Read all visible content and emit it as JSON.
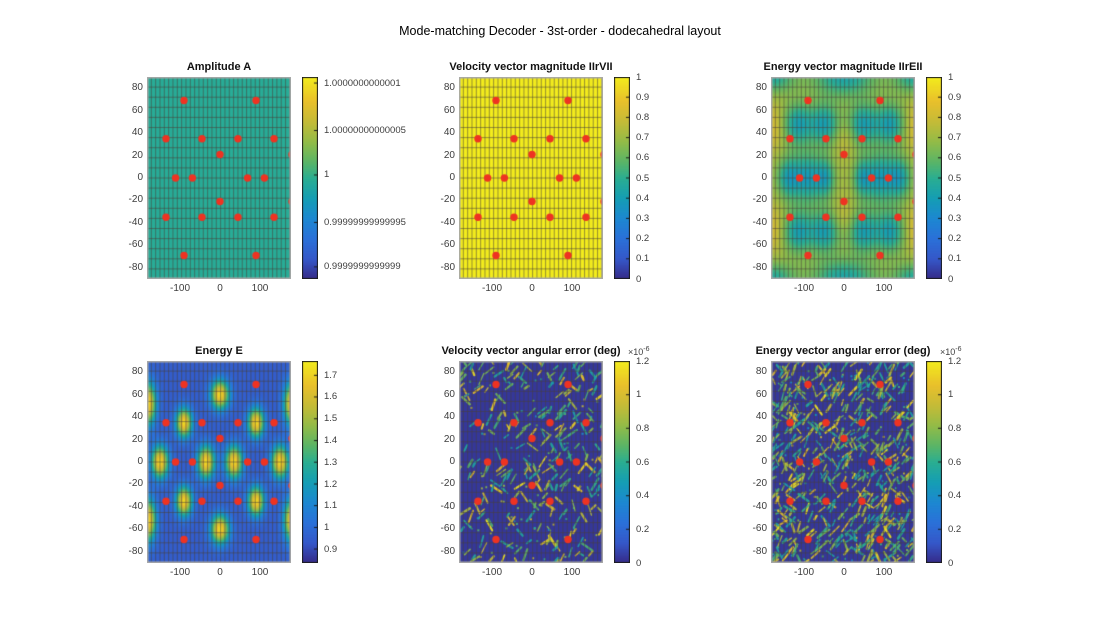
{
  "figure": {
    "title": "Mode-matching Decoder - 3st-order - dodecahedral layout",
    "background": "#ffffff"
  },
  "colors": {
    "speaker_dot": "#ee3322",
    "grid_line": "rgba(72,66,58,0.55)",
    "plot_border": "#a8a8a8",
    "colorbar_border": "#1a1a1a",
    "tick_label": "#3d3d3d",
    "colormap_stops": [
      [
        0.0,
        "#352a87"
      ],
      [
        0.1,
        "#3558c9"
      ],
      [
        0.2,
        "#2b71d9"
      ],
      [
        0.3,
        "#1d88d2"
      ],
      [
        0.4,
        "#159eb5"
      ],
      [
        0.5,
        "#2bae92"
      ],
      [
        0.58,
        "#5ab568"
      ],
      [
        0.68,
        "#93bc48"
      ],
      [
        0.78,
        "#c5bb38"
      ],
      [
        0.88,
        "#e9c02c"
      ],
      [
        1.0,
        "#f3ec1d"
      ]
    ]
  },
  "axes": {
    "x_range": [
      -182.5,
      177.5
    ],
    "y_range": [
      -90,
      90
    ],
    "x_ticks": [
      {
        "value": -100,
        "label": "-100"
      },
      {
        "value": 0,
        "label": "0"
      },
      {
        "value": 100,
        "label": "100"
      }
    ],
    "y_ticks": [
      {
        "value": 80,
        "label": "80"
      },
      {
        "value": 60,
        "label": "60"
      },
      {
        "value": 40,
        "label": "40"
      },
      {
        "value": 20,
        "label": "20"
      },
      {
        "value": 0,
        "label": "0"
      },
      {
        "value": -20,
        "label": "-20"
      },
      {
        "value": -40,
        "label": "-40"
      },
      {
        "value": -60,
        "label": "-60"
      },
      {
        "value": -80,
        "label": "-80"
      }
    ]
  },
  "speaker_positions": [
    [
      -90,
      69
    ],
    [
      90,
      69
    ],
    [
      -135,
      35
    ],
    [
      -45,
      35
    ],
    [
      45,
      35
    ],
    [
      135,
      35
    ],
    [
      0,
      21
    ],
    [
      180,
      21
    ],
    [
      -111,
      0
    ],
    [
      -69,
      0
    ],
    [
      69,
      0
    ],
    [
      111,
      0
    ],
    [
      0,
      -21
    ],
    [
      180,
      -21
    ],
    [
      -135,
      -35
    ],
    [
      -45,
      -35
    ],
    [
      45,
      -35
    ],
    [
      135,
      -35
    ],
    [
      -90,
      -69
    ],
    [
      90,
      -69
    ]
  ],
  "chart_data": [
    {
      "id": "amplitude-a",
      "type": "heatmap",
      "title": "Amplitude A",
      "show_speakers": true,
      "field": {
        "kind": "uniform",
        "frac": 0.485,
        "value_shown": "1"
      },
      "colorbar": {
        "ticks": [
          {
            "label": "1.0000000000001",
            "t": 0.03
          },
          {
            "label": "1.00000000000005",
            "t": 0.265
          },
          {
            "label": "1",
            "t": 0.485
          },
          {
            "label": "0.99999999999995",
            "t": 0.72
          },
          {
            "label": "0.9999999999999",
            "t": 0.94
          }
        ]
      }
    },
    {
      "id": "velocity-vector-magnitude",
      "type": "heatmap",
      "title": "Velocity vector magnitude IIrVII",
      "show_speakers": true,
      "field": {
        "kind": "uniform",
        "frac": 1.0,
        "value_shown": "1"
      },
      "colorbar": {
        "ticks": [
          {
            "label": "1",
            "t": 0
          },
          {
            "label": "0.9",
            "t": 0.1
          },
          {
            "label": "0.8",
            "t": 0.2
          },
          {
            "label": "0.7",
            "t": 0.3
          },
          {
            "label": "0.6",
            "t": 0.4
          },
          {
            "label": "0.5",
            "t": 0.5
          },
          {
            "label": "0.4",
            "t": 0.6
          },
          {
            "label": "0.3",
            "t": 0.7
          },
          {
            "label": "0.2",
            "t": 0.8
          },
          {
            "label": "0.1",
            "t": 0.9
          },
          {
            "label": "0",
            "t": 1
          }
        ]
      }
    },
    {
      "id": "energy-vector-magnitude",
      "type": "heatmap",
      "title": "Energy vector magnitude IIrEII",
      "show_speakers": true,
      "field": {
        "kind": "blobs",
        "base_frac": 0.72,
        "blobs": [
          [
            -115,
            48,
            -0.3,
            26,
            13
          ],
          [
            -48,
            48,
            -0.3,
            26,
            13
          ],
          [
            48,
            48,
            -0.3,
            26,
            13
          ],
          [
            115,
            48,
            -0.3,
            26,
            13
          ],
          [
            -90,
            0,
            -0.32,
            30,
            15
          ],
          [
            90,
            0,
            -0.32,
            30,
            15
          ],
          [
            -140,
            0,
            -0.25,
            20,
            13
          ],
          [
            140,
            0,
            -0.25,
            20,
            13
          ],
          [
            -45,
            0,
            -0.22,
            16,
            12
          ],
          [
            45,
            0,
            -0.22,
            16,
            12
          ],
          [
            -115,
            -48,
            -0.3,
            26,
            13
          ],
          [
            -48,
            -48,
            -0.3,
            26,
            13
          ],
          [
            48,
            -48,
            -0.3,
            26,
            13
          ],
          [
            115,
            -48,
            -0.3,
            26,
            13
          ],
          [
            0,
            90,
            -0.28,
            55,
            12
          ],
          [
            0,
            -90,
            -0.28,
            55,
            12
          ],
          [
            -180,
            90,
            -0.25,
            40,
            10
          ],
          [
            180,
            90,
            -0.25,
            40,
            10
          ],
          [
            -180,
            -90,
            -0.25,
            40,
            10
          ],
          [
            180,
            -90,
            -0.25,
            40,
            10
          ],
          [
            -180,
            45,
            0.12,
            20,
            15
          ],
          [
            180,
            45,
            0.12,
            20,
            15
          ],
          [
            -180,
            -45,
            0.12,
            20,
            15
          ],
          [
            180,
            -45,
            0.12,
            20,
            15
          ],
          [
            0,
            35,
            0.08,
            18,
            12
          ],
          [
            0,
            -35,
            0.08,
            18,
            12
          ]
        ]
      },
      "colorbar": {
        "ticks": [
          {
            "label": "1",
            "t": 0
          },
          {
            "label": "0.9",
            "t": 0.1
          },
          {
            "label": "0.8",
            "t": 0.2
          },
          {
            "label": "0.7",
            "t": 0.3
          },
          {
            "label": "0.6",
            "t": 0.4
          },
          {
            "label": "0.5",
            "t": 0.5
          },
          {
            "label": "0.4",
            "t": 0.6
          },
          {
            "label": "0.3",
            "t": 0.7
          },
          {
            "label": "0.2",
            "t": 0.8
          },
          {
            "label": "0.1",
            "t": 0.9
          },
          {
            "label": "0",
            "t": 1
          }
        ]
      }
    },
    {
      "id": "energy-e",
      "type": "heatmap",
      "title": "Energy E",
      "show_speakers": true,
      "field": {
        "kind": "blobs",
        "base_frac": 0.12,
        "blobs": [
          [
            0,
            60,
            0.83,
            16,
            9
          ],
          [
            -180,
            52,
            0.83,
            14,
            13
          ],
          [
            180,
            52,
            0.83,
            14,
            13
          ],
          [
            -90,
            35,
            0.83,
            14,
            9
          ],
          [
            90,
            35,
            0.83,
            14,
            9
          ],
          [
            -150,
            0,
            0.83,
            15,
            10
          ],
          [
            -35,
            0,
            0.83,
            15,
            10
          ],
          [
            35,
            0,
            0.83,
            15,
            10
          ],
          [
            150,
            0,
            0.83,
            15,
            10
          ],
          [
            -90,
            -35,
            0.83,
            14,
            9
          ],
          [
            90,
            -35,
            0.83,
            14,
            9
          ],
          [
            0,
            -60,
            0.83,
            16,
            9
          ],
          [
            -180,
            -52,
            0.83,
            14,
            13
          ],
          [
            180,
            -52,
            0.83,
            14,
            13
          ]
        ]
      },
      "colorbar": {
        "ticks": [
          {
            "label": "1.7",
            "t": 0.071
          },
          {
            "label": "1.6",
            "t": 0.178
          },
          {
            "label": "1.5",
            "t": 0.286
          },
          {
            "label": "1.4",
            "t": 0.394
          },
          {
            "label": "1.3",
            "t": 0.501
          },
          {
            "label": "1.2",
            "t": 0.609
          },
          {
            "label": "1.1",
            "t": 0.716
          },
          {
            "label": "1",
            "t": 0.824
          },
          {
            "label": "0.9",
            "t": 0.931
          }
        ]
      }
    },
    {
      "id": "velocity-vector-angular-error",
      "type": "heatmap",
      "title": "Velocity vector angular error (deg)",
      "show_speakers": true,
      "field": {
        "kind": "noise",
        "base_frac": 0.03,
        "seed": 7,
        "count": 250
      },
      "colorbar": {
        "exponent": {
          "text": "×10",
          "sup": "-6"
        },
        "ticks": [
          {
            "label": "1.2",
            "t": 0
          },
          {
            "label": "1",
            "t": 0.167
          },
          {
            "label": "0.8",
            "t": 0.333
          },
          {
            "label": "0.6",
            "t": 0.5
          },
          {
            "label": "0.4",
            "t": 0.667
          },
          {
            "label": "0.2",
            "t": 0.833
          },
          {
            "label": "0",
            "t": 1
          }
        ]
      }
    },
    {
      "id": "energy-vector-angular-error",
      "type": "heatmap",
      "title": "Energy vector angular error (deg)",
      "show_speakers": true,
      "field": {
        "kind": "noise",
        "base_frac": 0.03,
        "seed": 13,
        "count": 520
      },
      "colorbar": {
        "exponent": {
          "text": "×10",
          "sup": "-6"
        },
        "ticks": [
          {
            "label": "1.2",
            "t": 0
          },
          {
            "label": "1",
            "t": 0.167
          },
          {
            "label": "0.8",
            "t": 0.333
          },
          {
            "label": "0.6",
            "t": 0.5
          },
          {
            "label": "0.4",
            "t": 0.667
          },
          {
            "label": "0.2",
            "t": 0.833
          },
          {
            "label": "0",
            "t": 1
          }
        ]
      }
    }
  ]
}
